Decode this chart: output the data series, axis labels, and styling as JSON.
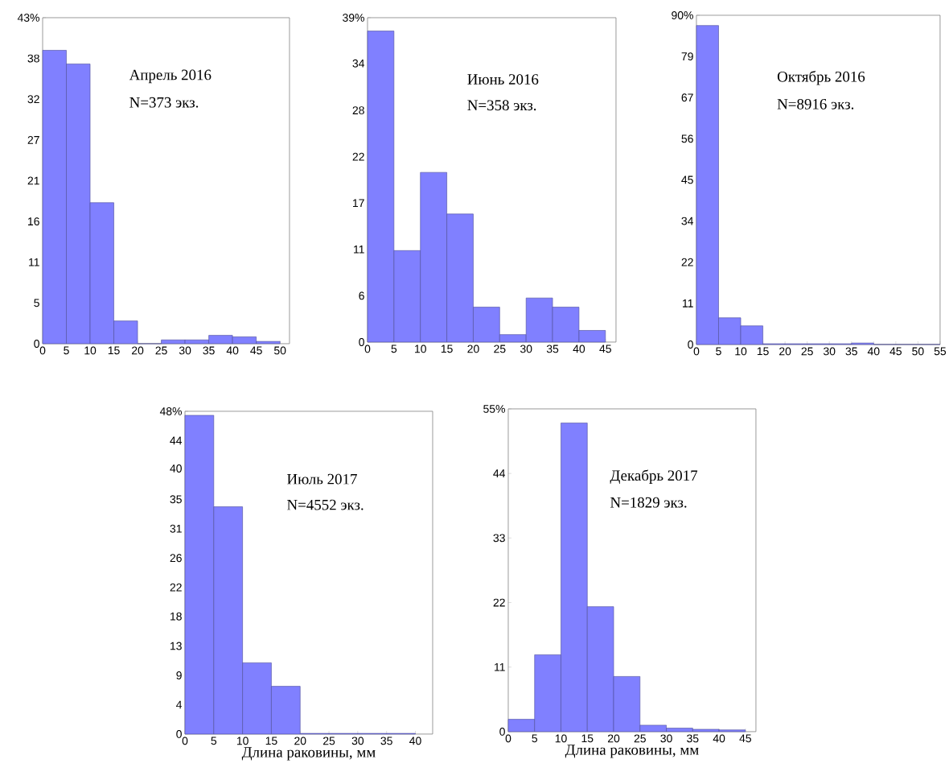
{
  "chart_data": [
    {
      "type": "histogram",
      "color": "#8080ff",
      "bins": [
        0,
        5,
        10,
        15,
        20,
        25,
        30,
        35,
        40,
        45,
        50
      ],
      "values": [
        38.7,
        36.9,
        18.6,
        3.0,
        0,
        0.5,
        0.5,
        1.1,
        0.9,
        0.3
      ],
      "xlim": [
        0,
        52
      ],
      "ylim": [
        0,
        43
      ],
      "xticks": [
        0,
        5,
        10,
        15,
        20,
        25,
        30,
        35,
        40,
        45,
        50
      ],
      "yticks": [
        0,
        {
          "value": 5.375,
          "label": "5"
        },
        {
          "value": 10.75,
          "label": "11"
        },
        {
          "value": 16.125,
          "label": "16"
        },
        {
          "value": 21.5,
          "label": "21"
        },
        {
          "value": 26.875,
          "label": "27"
        },
        {
          "value": 32.25,
          "label": "32"
        },
        {
          "value": 37.625,
          "label": "38"
        },
        {
          "value": 43,
          "label": "43%"
        }
      ],
      "annotations": [
        "Апрель 2016",
        "N=373 экз."
      ]
    },
    {
      "type": "histogram",
      "color": "#8080ff",
      "bins": [
        0,
        5,
        10,
        15,
        20,
        25,
        30,
        35,
        40,
        45
      ],
      "values": [
        37.4,
        11.0,
        20.4,
        15.4,
        4.2,
        0.9,
        5.3,
        4.2,
        1.4
      ],
      "xlim": [
        0,
        47
      ],
      "ylim": [
        0,
        39
      ],
      "xticks": [
        0,
        5,
        10,
        15,
        20,
        25,
        30,
        35,
        40,
        45
      ],
      "yticks": [
        0,
        {
          "value": 5.571,
          "label": "6"
        },
        {
          "value": 11.143,
          "label": "11"
        },
        {
          "value": 16.714,
          "label": "17"
        },
        {
          "value": 22.286,
          "label": "22"
        },
        {
          "value": 27.857,
          "label": "28"
        },
        {
          "value": 33.5,
          "label": "34"
        },
        {
          "value": 39,
          "label": "39%"
        }
      ],
      "annotations": [
        "Июнь 2016",
        "N=358 экз."
      ]
    },
    {
      "type": "histogram",
      "color": "#8080ff",
      "bins": [
        0,
        5,
        10,
        15,
        20,
        25,
        30,
        35,
        40,
        45,
        50,
        55
      ],
      "values": [
        87.2,
        7.3,
        5.1,
        0.2,
        0.2,
        0.2,
        0.2,
        0.4,
        0,
        0,
        0
      ],
      "xlim": [
        0,
        55
      ],
      "ylim": [
        0,
        90
      ],
      "xticks": [
        0,
        5,
        10,
        15,
        20,
        25,
        30,
        35,
        40,
        45,
        50,
        55
      ],
      "yticks": [
        0,
        {
          "value": 11.25,
          "label": "11"
        },
        {
          "value": 22.5,
          "label": "22"
        },
        {
          "value": 33.75,
          "label": "34"
        },
        {
          "value": 45,
          "label": "45"
        },
        {
          "value": 56.25,
          "label": "56"
        },
        {
          "value": 67.5,
          "label": "67"
        },
        {
          "value": 78.75,
          "label": "79"
        },
        {
          "value": 90,
          "label": "90%"
        }
      ],
      "annotations": [
        "Октябрь 2016",
        "N=8916 экз."
      ]
    },
    {
      "type": "histogram",
      "color": "#8080ff",
      "bins": [
        0,
        5,
        10,
        15,
        20,
        25,
        30,
        35,
        40
      ],
      "values": [
        47.4,
        33.8,
        10.6,
        7.1,
        0.1,
        0.1,
        0.1,
        0.1
      ],
      "xlim": [
        0,
        43
      ],
      "ylim": [
        0,
        48
      ],
      "xticks": [
        0,
        5,
        10,
        15,
        20,
        25,
        30,
        35,
        40
      ],
      "yticks": [
        0,
        {
          "value": 4.364,
          "label": "4"
        },
        {
          "value": 8.727,
          "label": "9"
        },
        {
          "value": 13.091,
          "label": "13"
        },
        {
          "value": 17.5,
          "label": "18"
        },
        {
          "value": 21.818,
          "label": "22"
        },
        {
          "value": 26.182,
          "label": "26"
        },
        {
          "value": 30.545,
          "label": "31"
        },
        {
          "value": 34.909,
          "label": "35"
        },
        {
          "value": 39.5,
          "label": "40"
        },
        {
          "value": 43.636,
          "label": "44"
        },
        {
          "value": 48,
          "label": "48%"
        }
      ],
      "xlabel": "Длина раковины, мм",
      "annotations": [
        "Июль 2017",
        "N=4552 экз."
      ]
    },
    {
      "type": "histogram",
      "color": "#8080ff",
      "bins": [
        0,
        5,
        10,
        15,
        20,
        25,
        30,
        35,
        40,
        45
      ],
      "values": [
        2.1,
        13.1,
        52.6,
        21.3,
        9.4,
        1.1,
        0.6,
        0.4,
        0.3
      ],
      "xlim": [
        0,
        47
      ],
      "ylim": [
        0,
        55
      ],
      "xticks": [
        0,
        5,
        10,
        15,
        20,
        25,
        30,
        35,
        40,
        45
      ],
      "yticks": [
        0,
        11,
        22,
        33,
        44,
        {
          "value": 55,
          "label": "55%"
        }
      ],
      "xlabel": "Длина раковины, мм",
      "annotations": [
        "Декабрь 2017",
        "N=1829 экз."
      ]
    }
  ]
}
